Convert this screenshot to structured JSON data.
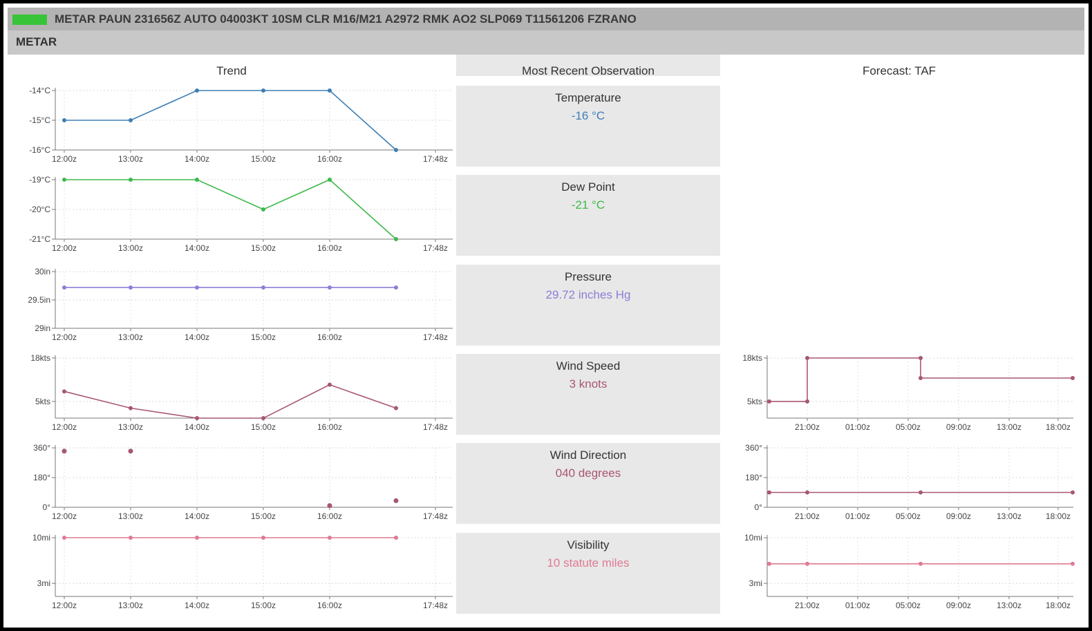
{
  "metar_raw": "METAR PAUN 231656Z AUTO 04003KT 10SM CLR M16/M21 A2972 RMK AO2 SLP069 T11561206 FZRANO",
  "section_title": "METAR",
  "columns": {
    "trend": "Trend",
    "recent": "Most Recent Observation",
    "forecast": "Forecast: TAF"
  },
  "colors": {
    "status": "#38c438",
    "temperature": "#3d7eb5",
    "dew_point": "#3cb94a",
    "pressure": "#8a7fd6",
    "wind_speed": "#a85770",
    "wind_direction": "#a85770",
    "visibility": "#e07a93"
  },
  "observations": [
    {
      "label": "Temperature",
      "value": "-16 °C",
      "color": "#3d7eb5"
    },
    {
      "label": "Dew Point",
      "value": "-21 °C",
      "color": "#3cb94a"
    },
    {
      "label": "Pressure",
      "value": "29.72 inches Hg",
      "color": "#8a7fd6"
    },
    {
      "label": "Wind Speed",
      "value": "3 knots",
      "color": "#a85770"
    },
    {
      "label": "Wind Direction",
      "value": "040 degrees",
      "color": "#a85770"
    },
    {
      "label": "Visibility",
      "value": "10 statute miles",
      "color": "#e07a93"
    }
  ],
  "chart_data": [
    {
      "id": "trend-temperature",
      "type": "line",
      "x": [
        "12:00z",
        "13:00z",
        "14:00z",
        "15:00z",
        "16:00z",
        "17:00z"
      ],
      "xticks": [
        "12:00z",
        "13:00z",
        "14:00z",
        "15:00z",
        "16:00z",
        "17:48z"
      ],
      "values": [
        -15,
        -15,
        -14,
        -14,
        -14,
        -16
      ],
      "ylim": [
        -16,
        -14
      ],
      "yticks": [
        {
          "v": -14,
          "label": "-14°C"
        },
        {
          "v": -15,
          "label": "-15°C"
        },
        {
          "v": -16,
          "label": "-16°C"
        }
      ],
      "color": "#3d7eb5"
    },
    {
      "id": "trend-dewpoint",
      "type": "line",
      "x": [
        "12:00z",
        "13:00z",
        "14:00z",
        "15:00z",
        "16:00z",
        "17:00z"
      ],
      "xticks": [
        "12:00z",
        "13:00z",
        "14:00z",
        "15:00z",
        "16:00z",
        "17:48z"
      ],
      "values": [
        -19,
        -19,
        -19,
        -20,
        -19,
        -21
      ],
      "ylim": [
        -21,
        -19
      ],
      "yticks": [
        {
          "v": -19,
          "label": "-19°C"
        },
        {
          "v": -20,
          "label": "-20°C"
        },
        {
          "v": -21,
          "label": "-21°C"
        }
      ],
      "color": "#3cb94a"
    },
    {
      "id": "trend-pressure",
      "type": "line",
      "x": [
        "12:00z",
        "13:00z",
        "14:00z",
        "15:00z",
        "16:00z",
        "17:00z"
      ],
      "xticks": [
        "12:00z",
        "13:00z",
        "14:00z",
        "15:00z",
        "16:00z",
        "17:48z"
      ],
      "values": [
        29.72,
        29.72,
        29.72,
        29.72,
        29.72,
        29.72
      ],
      "ylim": [
        29,
        30
      ],
      "yticks": [
        {
          "v": 30,
          "label": "30in"
        },
        {
          "v": 29.5,
          "label": "29.5in"
        },
        {
          "v": 29,
          "label": "29in"
        }
      ],
      "color": "#8a7fd6"
    },
    {
      "id": "trend-windspeed",
      "type": "line",
      "x": [
        "12:00z",
        "13:00z",
        "14:00z",
        "15:00z",
        "16:00z",
        "17:00z"
      ],
      "xticks": [
        "12:00z",
        "13:00z",
        "14:00z",
        "15:00z",
        "16:00z",
        "17:48z"
      ],
      "values": [
        8,
        3,
        0,
        0,
        10,
        3
      ],
      "ylim": [
        0,
        18
      ],
      "yticks": [
        {
          "v": 18,
          "label": "18kts"
        },
        {
          "v": 5,
          "label": "5kts"
        }
      ],
      "color": "#a85770"
    },
    {
      "id": "trend-winddir",
      "type": "scatter",
      "x": [
        "12:00z",
        "13:00z",
        "16:00z",
        "17:00z"
      ],
      "xticks": [
        "12:00z",
        "13:00z",
        "14:00z",
        "15:00z",
        "16:00z",
        "17:48z"
      ],
      "values": [
        340,
        340,
        10,
        40
      ],
      "ylim": [
        0,
        360
      ],
      "yticks": [
        {
          "v": 360,
          "label": "360°"
        },
        {
          "v": 180,
          "label": "180°"
        },
        {
          "v": 0,
          "label": "0°"
        }
      ],
      "color": "#a85770"
    },
    {
      "id": "trend-visibility",
      "type": "line",
      "x": [
        "12:00z",
        "13:00z",
        "14:00z",
        "15:00z",
        "16:00z",
        "17:00z"
      ],
      "xticks": [
        "12:00z",
        "13:00z",
        "14:00z",
        "15:00z",
        "16:00z",
        "17:48z"
      ],
      "values": [
        10,
        10,
        10,
        10,
        10,
        10
      ],
      "ylim": [
        1,
        10
      ],
      "yticks": [
        {
          "v": 10,
          "label": "10mi"
        },
        {
          "v": 3,
          "label": "3mi"
        }
      ],
      "color": "#e07a93"
    },
    {
      "id": "taf-windspeed",
      "type": "line",
      "x": [
        "18:00z",
        "21:00z",
        "21:00z",
        "06:00z",
        "06:00z",
        "18:00z"
      ],
      "xticks": [
        "21:00z",
        "01:00z",
        "05:00z",
        "09:00z",
        "13:00z",
        "18:00z"
      ],
      "values": [
        5,
        5,
        18,
        18,
        12,
        12
      ],
      "ylim": [
        0,
        18
      ],
      "yticks": [
        {
          "v": 18,
          "label": "18kts"
        },
        {
          "v": 5,
          "label": "5kts"
        }
      ],
      "color": "#a85770"
    },
    {
      "id": "taf-winddir",
      "type": "line",
      "x": [
        "18:00z",
        "21:00z",
        "06:00z",
        "18:00z"
      ],
      "xticks": [
        "21:00z",
        "01:00z",
        "05:00z",
        "09:00z",
        "13:00z",
        "18:00z"
      ],
      "values": [
        90,
        90,
        90,
        90
      ],
      "ylim": [
        0,
        360
      ],
      "yticks": [
        {
          "v": 360,
          "label": "360°"
        },
        {
          "v": 180,
          "label": "180°"
        },
        {
          "v": 0,
          "label": "0°"
        }
      ],
      "color": "#a85770"
    },
    {
      "id": "taf-visibility",
      "type": "line",
      "x": [
        "18:00z",
        "21:00z",
        "06:00z",
        "18:00z"
      ],
      "xticks": [
        "21:00z",
        "01:00z",
        "05:00z",
        "09:00z",
        "13:00z",
        "18:00z"
      ],
      "values": [
        6,
        6,
        6,
        6
      ],
      "ylim": [
        1,
        10
      ],
      "yticks": [
        {
          "v": 10,
          "label": "10mi"
        },
        {
          "v": 3,
          "label": "3mi"
        }
      ],
      "color": "#e07a93"
    }
  ]
}
